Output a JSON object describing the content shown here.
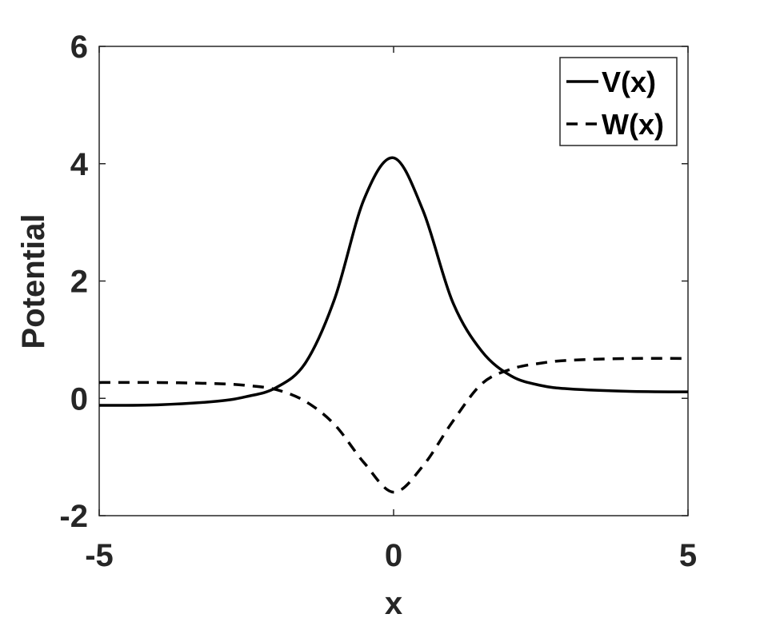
{
  "chart_data": {
    "type": "line",
    "xlabel": "x",
    "ylabel": "Potential",
    "xlim": [
      -5,
      5
    ],
    "ylim": [
      -2,
      6
    ],
    "xticks": [
      -5,
      0,
      5
    ],
    "yticks": [
      -2,
      0,
      2,
      4,
      6
    ],
    "xtick_labels": [
      "-5",
      "0",
      "5"
    ],
    "ytick_labels": [
      "-2",
      "0",
      "2",
      "4",
      "6"
    ],
    "grid": false,
    "legend_position": "top-right",
    "legend": [
      "V(x)",
      "W(x)"
    ],
    "x": [
      -5,
      -4,
      -3,
      -2.5,
      -2,
      -1.5,
      -1,
      -0.5,
      0,
      0.5,
      1,
      1.5,
      2,
      2.5,
      3,
      4,
      5
    ],
    "series": [
      {
        "name": "V(x)",
        "style": "solid",
        "color": "#000000",
        "values": [
          -0.12,
          -0.11,
          -0.05,
          0.03,
          0.18,
          0.6,
          1.7,
          3.4,
          4.1,
          3.2,
          1.65,
          0.8,
          0.38,
          0.22,
          0.16,
          0.12,
          0.11
        ]
      },
      {
        "name": "W(x)",
        "style": "dashed",
        "color": "#000000",
        "values": [
          0.27,
          0.27,
          0.25,
          0.22,
          0.15,
          -0.05,
          -0.45,
          -1.1,
          -1.6,
          -1.15,
          -0.4,
          0.25,
          0.5,
          0.6,
          0.65,
          0.68,
          0.68
        ]
      }
    ]
  }
}
